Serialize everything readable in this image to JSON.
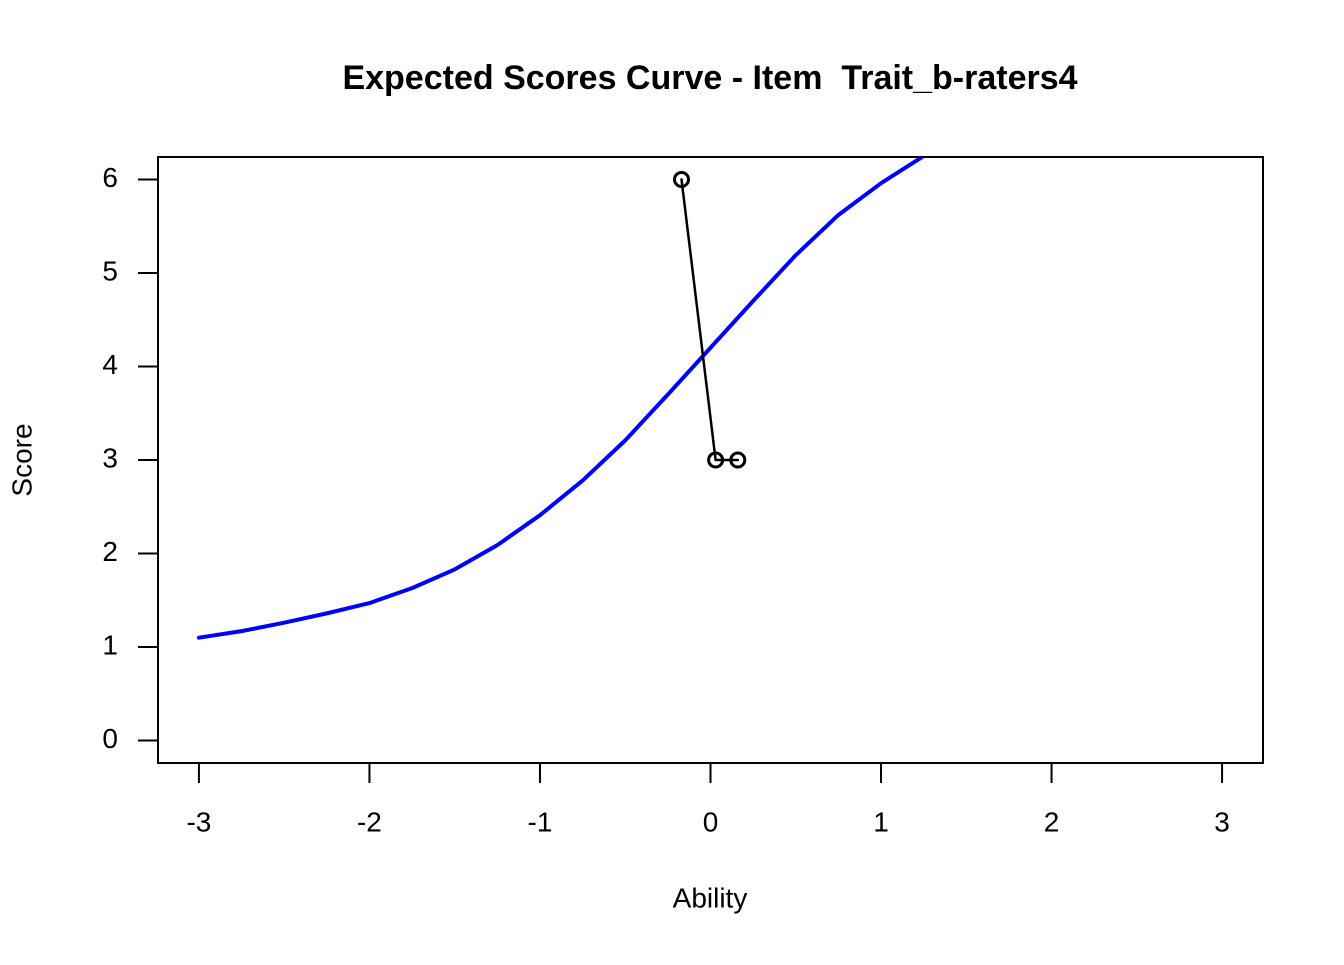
{
  "chart_data": {
    "type": "line",
    "title": "Expected Scores Curve - Item  Trait_b-raters4",
    "xlabel": "Ability",
    "ylabel": "Score",
    "xlim": [
      -3.24,
      3.24
    ],
    "ylim": [
      -0.24,
      6.24
    ],
    "xticks": [
      -3,
      -2,
      -1,
      0,
      1,
      2,
      3
    ],
    "yticks": [
      0,
      1,
      2,
      3,
      4,
      5,
      6
    ],
    "series": [
      {
        "color": "#0000ff",
        "markers": false,
        "linewidth": 4,
        "x": [
          -3,
          -2.75,
          -2.5,
          -2.25,
          -2,
          -1.75,
          -1.5,
          -1.25,
          -1,
          -0.75,
          -0.5,
          -0.25,
          0,
          0.25,
          0.5,
          0.75,
          1,
          1.25
        ],
        "values": [
          1.1,
          1.17,
          1.26,
          1.36,
          1.47,
          1.63,
          1.83,
          2.09,
          2.41,
          2.78,
          3.21,
          3.7,
          4.2,
          4.7,
          5.19,
          5.62,
          5.96,
          6.25
        ]
      },
      {
        "color": "#000000",
        "markers": true,
        "linewidth": 2.5,
        "x": [
          -0.17,
          0.03,
          0.16
        ],
        "values": [
          6,
          3,
          3
        ]
      }
    ]
  }
}
